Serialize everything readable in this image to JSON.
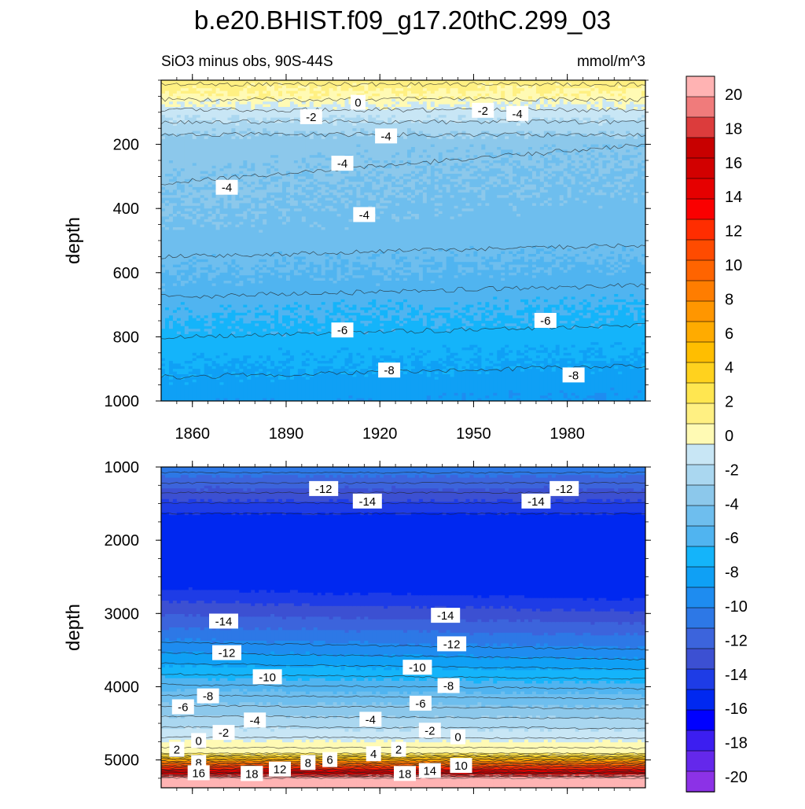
{
  "title": "b.e20.BHIST.f09_g17.20thC.299_03",
  "subtitle_left": "SiO3 minus obs, 90S-44S",
  "subtitle_right": "mmol/m^3",
  "colorbar": {
    "labels": [
      "20",
      "18",
      "16",
      "14",
      "12",
      "10",
      "8",
      "6",
      "4",
      "2",
      "0",
      "-2",
      "-4",
      "-6",
      "-8",
      "-10",
      "-12",
      "-14",
      "-16",
      "-18",
      "-20"
    ],
    "colors": [
      "#ffb3b3",
      "#f07b7b",
      "#dc3c3c",
      "#c80000",
      "#d20000",
      "#e60000",
      "#fa0000",
      "#ff2d00",
      "#ff4b00",
      "#ff6400",
      "#ff7d00",
      "#ff9600",
      "#ffab00",
      "#ffbe00",
      "#ffd21e",
      "#ffe650",
      "#fff082",
      "#fffab4",
      "#c8e6f5",
      "#aad7f0",
      "#8cc8eb",
      "#6ebeee",
      "#50b4f0",
      "#14b4fa",
      "#0fa0f5",
      "#1e8cf0",
      "#2d78e6",
      "#3c64dc",
      "#3c50d2",
      "#1e3ce6",
      "#0028f0",
      "#0000ff",
      "#3c1ef0",
      "#6428eb",
      "#8c32e6"
    ]
  },
  "chart_data": [
    {
      "type": "heatmap",
      "name": "upper",
      "xlabel": "",
      "ylabel": "depth",
      "xlim": [
        1850,
        2005
      ],
      "ylim": [
        1000,
        0
      ],
      "x_ticks": [
        1860,
        1890,
        1920,
        1950,
        1980
      ],
      "y_ticks": [
        200,
        400,
        600,
        800,
        1000
      ],
      "contour_labels": [
        {
          "text": "0",
          "x": 1913,
          "y": 70
        },
        {
          "text": "-2",
          "x": 1898,
          "y": 115
        },
        {
          "text": "-2",
          "x": 1953,
          "y": 95
        },
        {
          "text": "-4",
          "x": 1964,
          "y": 105
        },
        {
          "text": "-4",
          "x": 1922,
          "y": 175
        },
        {
          "text": "-4",
          "x": 1908,
          "y": 260
        },
        {
          "text": "-4",
          "x": 1871,
          "y": 335
        },
        {
          "text": "-4",
          "x": 1915,
          "y": 420
        },
        {
          "text": "-6",
          "x": 1908,
          "y": 780
        },
        {
          "text": "-6",
          "x": 1973,
          "y": 750
        },
        {
          "text": "-8",
          "x": 1923,
          "y": 905
        },
        {
          "text": "-8",
          "x": 1982,
          "y": 920
        }
      ]
    },
    {
      "type": "heatmap",
      "name": "lower",
      "xlabel": "",
      "ylabel": "depth",
      "xlim": [
        1850,
        2005
      ],
      "ylim": [
        5380,
        1000
      ],
      "y_ticks": [
        1000,
        2000,
        3000,
        4000,
        5000
      ],
      "contour_labels": [
        {
          "text": "-12",
          "x": 1902,
          "y": 1300
        },
        {
          "text": "-12",
          "x": 1979,
          "y": 1300
        },
        {
          "text": "-14",
          "x": 1916,
          "y": 1470
        },
        {
          "text": "-14",
          "x": 1970,
          "y": 1470
        },
        {
          "text": "-14",
          "x": 1870,
          "y": 3110
        },
        {
          "text": "-14",
          "x": 1941,
          "y": 3030
        },
        {
          "text": "-12",
          "x": 1871,
          "y": 3540
        },
        {
          "text": "-12",
          "x": 1943,
          "y": 3420
        },
        {
          "text": "-10",
          "x": 1884,
          "y": 3870
        },
        {
          "text": "-10",
          "x": 1932,
          "y": 3740
        },
        {
          "text": "-8",
          "x": 1865,
          "y": 4130
        },
        {
          "text": "-8",
          "x": 1942,
          "y": 3990
        },
        {
          "text": "-6",
          "x": 1857,
          "y": 4280
        },
        {
          "text": "-6",
          "x": 1933,
          "y": 4230
        },
        {
          "text": "-4",
          "x": 1880,
          "y": 4460
        },
        {
          "text": "-4",
          "x": 1917,
          "y": 4450
        },
        {
          "text": "-2",
          "x": 1870,
          "y": 4630
        },
        {
          "text": "-2",
          "x": 1936,
          "y": 4600
        },
        {
          "text": "0",
          "x": 1862,
          "y": 4740
        },
        {
          "text": "0",
          "x": 1945,
          "y": 4690
        },
        {
          "text": "2",
          "x": 1855,
          "y": 4860
        },
        {
          "text": "2",
          "x": 1926,
          "y": 4860
        },
        {
          "text": "4",
          "x": 1918,
          "y": 4920
        },
        {
          "text": "6",
          "x": 1904,
          "y": 5000
        },
        {
          "text": "8",
          "x": 1862,
          "y": 5040
        },
        {
          "text": "8",
          "x": 1897,
          "y": 5040
        },
        {
          "text": "10",
          "x": 1946,
          "y": 5080
        },
        {
          "text": "12",
          "x": 1888,
          "y": 5130
        },
        {
          "text": "14",
          "x": 1936,
          "y": 5150
        },
        {
          "text": "16",
          "x": 1862,
          "y": 5180
        },
        {
          "text": "16",
          "x": 1879,
          "y": 5190
        },
        {
          "text": "18",
          "x": 1879,
          "y": 5190
        },
        {
          "text": "18",
          "x": 1928,
          "y": 5190
        }
      ]
    }
  ]
}
